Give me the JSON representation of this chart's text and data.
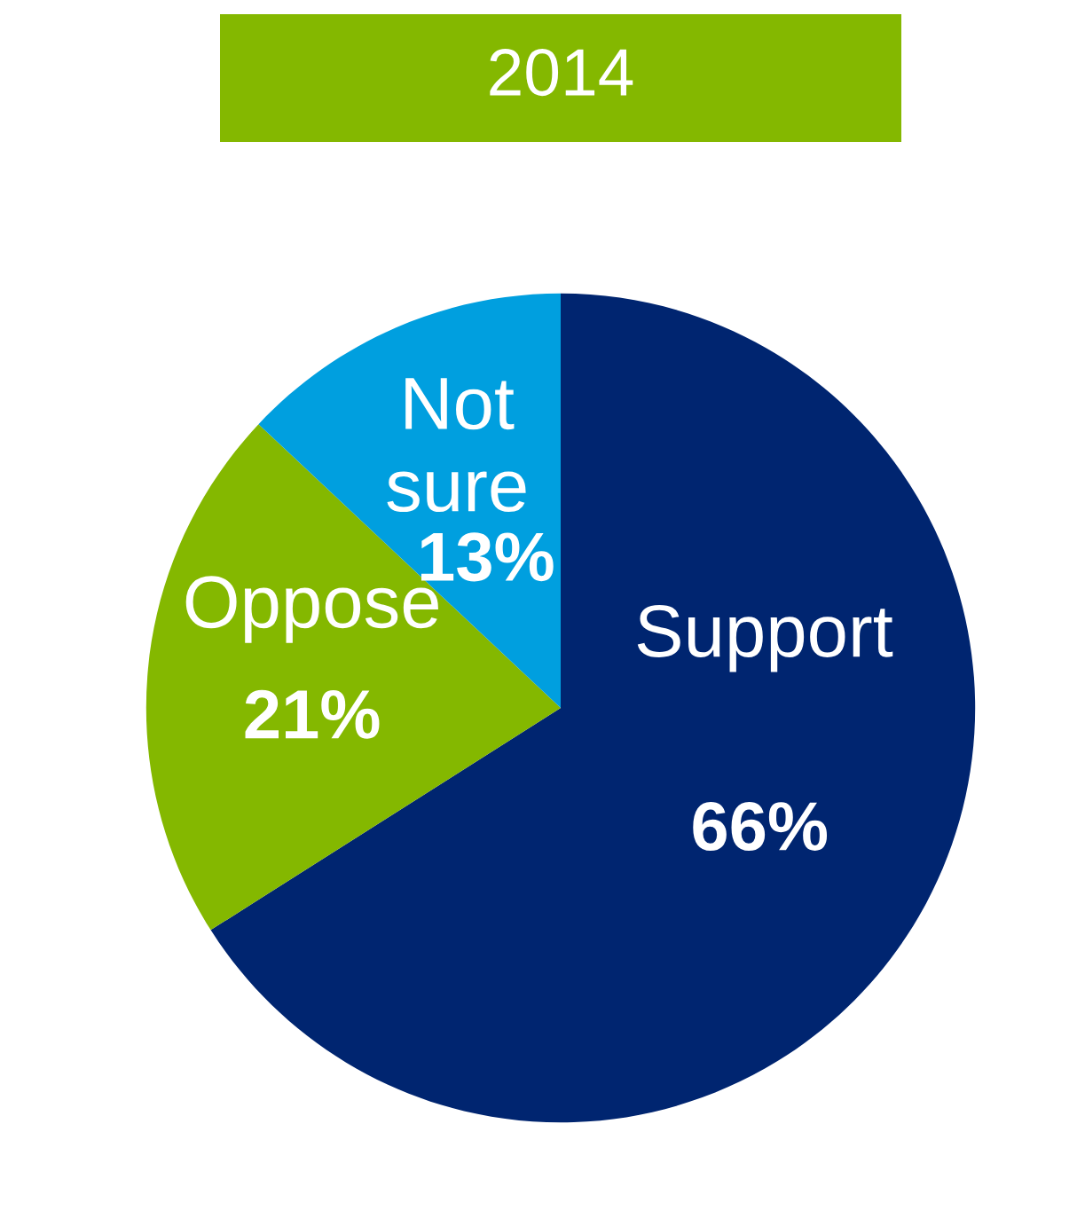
{
  "chart_data": {
    "type": "pie",
    "title": "2014",
    "categories": [
      "Support",
      "Oppose",
      "Not\nsure"
    ],
    "values": [
      66,
      21,
      13
    ],
    "colors": [
      "#002570",
      "#84b800",
      "#009fdf"
    ],
    "value_labels": [
      "66%",
      "21%",
      "13%"
    ],
    "legend": false
  }
}
